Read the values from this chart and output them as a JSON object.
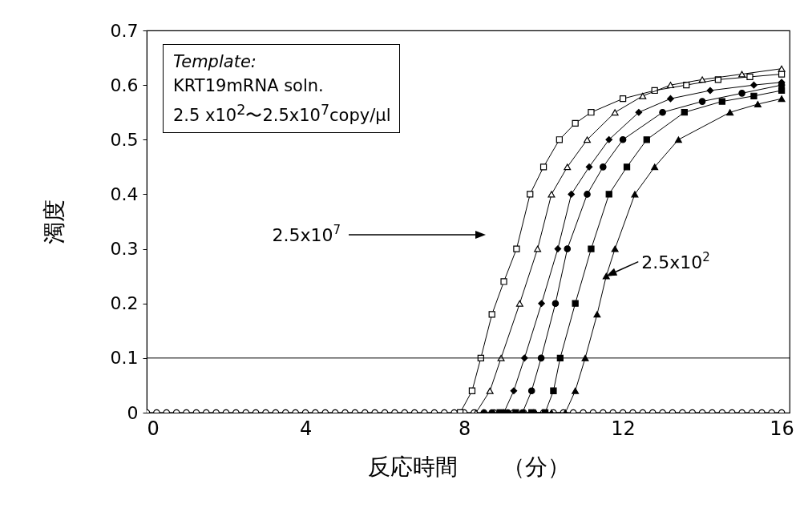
{
  "chart_data": {
    "type": "line",
    "xlabel": "反応時間　　（分）",
    "ylabel": "濁度",
    "xlim": [
      0,
      16.2
    ],
    "xticks": [
      0,
      4,
      8,
      12,
      16
    ],
    "ylim": [
      0,
      0.7
    ],
    "yticks": [
      0,
      0.1,
      0.2,
      0.3,
      0.4,
      0.5,
      0.6,
      0.7
    ],
    "grid": false,
    "line_style": "solid",
    "ref_lines": [
      {
        "axis": "y",
        "value": 0.1,
        "color": "#000000"
      }
    ],
    "annotations": [
      "Template:",
      "KRT19mRNA soln.",
      "2.5 x10$^{2}$〜2.5x10$^{7}$copy/μl",
      "2.5x10$^{7}$",
      {
        "text": "2.5x10$^{2}$",
        "x": 11.58,
        "y": 0.25
      }
    ],
    "series": [
      {
        "marker": "circle",
        "color": "#ffffff",
        "x": [
          0,
          0.25,
          0.5,
          0.75,
          1,
          1.25,
          1.5,
          1.75,
          2,
          2.25,
          2.5,
          2.75,
          3,
          3.25,
          3.5,
          3.75,
          4,
          4.25,
          4.5,
          4.75,
          5,
          5.25,
          5.5,
          5.75,
          6,
          6.25,
          6.5,
          6.75,
          7,
          7.25,
          7.5,
          7.75,
          8,
          8.25,
          8.5,
          8.75,
          9,
          9.25,
          9.5,
          9.75,
          10,
          10.25,
          10.5,
          10.75,
          11,
          11.25,
          11.5,
          11.75,
          12,
          12.25,
          12.5,
          12.75,
          13,
          13.25,
          13.5,
          13.75,
          14,
          14.25,
          14.5,
          14.75,
          15,
          15.25,
          15.5,
          15.75,
          16
        ],
        "values": [
          0,
          0,
          0,
          0,
          0,
          0,
          0,
          0,
          0,
          0,
          0,
          0,
          0,
          0,
          0,
          0,
          0,
          0,
          0,
          0,
          0,
          0,
          0,
          0,
          0,
          0,
          0,
          0,
          0,
          0,
          0,
          0,
          0,
          0,
          0,
          0,
          0,
          0,
          0,
          0,
          0,
          0,
          0,
          0,
          0,
          0,
          0,
          0,
          0,
          0,
          0,
          0,
          0,
          0,
          0,
          0,
          0,
          0,
          0,
          0,
          0,
          0,
          0,
          0,
          0
        ]
      },
      {
        "marker": "square",
        "color": "#ffffff",
        "x": [
          7.9,
          8.2,
          8.42,
          8.7,
          9.0,
          9.32,
          9.66,
          10.0,
          10.4,
          10.8,
          11.2,
          12.0,
          12.8,
          13.6,
          14.4,
          15.2,
          16.0
        ],
        "values": [
          0,
          0.04,
          0.1,
          0.18,
          0.24,
          0.3,
          0.4,
          0.45,
          0.5,
          0.53,
          0.55,
          0.575,
          0.59,
          0.6,
          0.61,
          0.615,
          0.62
        ]
      },
      {
        "marker": "triangle",
        "color": "#ffffff",
        "x": [
          8.3,
          8.65,
          8.93,
          9.4,
          9.85,
          10.2,
          10.6,
          11.1,
          11.8,
          12.5,
          13.2,
          14.0,
          15.0,
          16.0
        ],
        "values": [
          0,
          0.04,
          0.1,
          0.2,
          0.3,
          0.4,
          0.45,
          0.5,
          0.55,
          0.58,
          0.6,
          0.61,
          0.62,
          0.63
        ]
      },
      {
        "marker": "diamond",
        "color": "#000000",
        "x": [
          8.5,
          9.0,
          9.25,
          9.52,
          9.95,
          10.36,
          10.7,
          11.15,
          11.65,
          12.4,
          13.2,
          14.2,
          15.3,
          16.0
        ],
        "values": [
          0,
          0,
          0.04,
          0.1,
          0.2,
          0.3,
          0.4,
          0.45,
          0.5,
          0.55,
          0.575,
          0.59,
          0.6,
          0.605
        ]
      },
      {
        "marker": "circle",
        "color": "#000000",
        "x": [
          8.7,
          9.1,
          9.47,
          9.7,
          9.94,
          10.3,
          10.6,
          11.1,
          11.5,
          12.0,
          13.0,
          14.0,
          15.0,
          16.0
        ],
        "values": [
          0,
          0,
          0,
          0.04,
          0.1,
          0.2,
          0.3,
          0.4,
          0.45,
          0.5,
          0.55,
          0.57,
          0.585,
          0.6
        ]
      },
      {
        "marker": "square",
        "color": "#000000",
        "x": [
          8.9,
          9.3,
          9.7,
          10.04,
          10.25,
          10.42,
          10.8,
          11.2,
          11.65,
          12.1,
          12.6,
          13.55,
          14.5,
          15.3,
          16.0
        ],
        "values": [
          0,
          0,
          0,
          0,
          0.04,
          0.1,
          0.2,
          0.3,
          0.4,
          0.45,
          0.5,
          0.55,
          0.57,
          0.58,
          0.59
        ]
      },
      {
        "marker": "triangle",
        "color": "#000000",
        "x": [
          9.8,
          10.2,
          10.55,
          10.8,
          11.05,
          11.35,
          11.58,
          11.8,
          12.3,
          12.8,
          13.4,
          14.7,
          15.4,
          16.0
        ],
        "values": [
          0,
          0,
          0,
          0.04,
          0.1,
          0.18,
          0.25,
          0.3,
          0.4,
          0.45,
          0.5,
          0.55,
          0.565,
          0.575
        ]
      }
    ]
  }
}
